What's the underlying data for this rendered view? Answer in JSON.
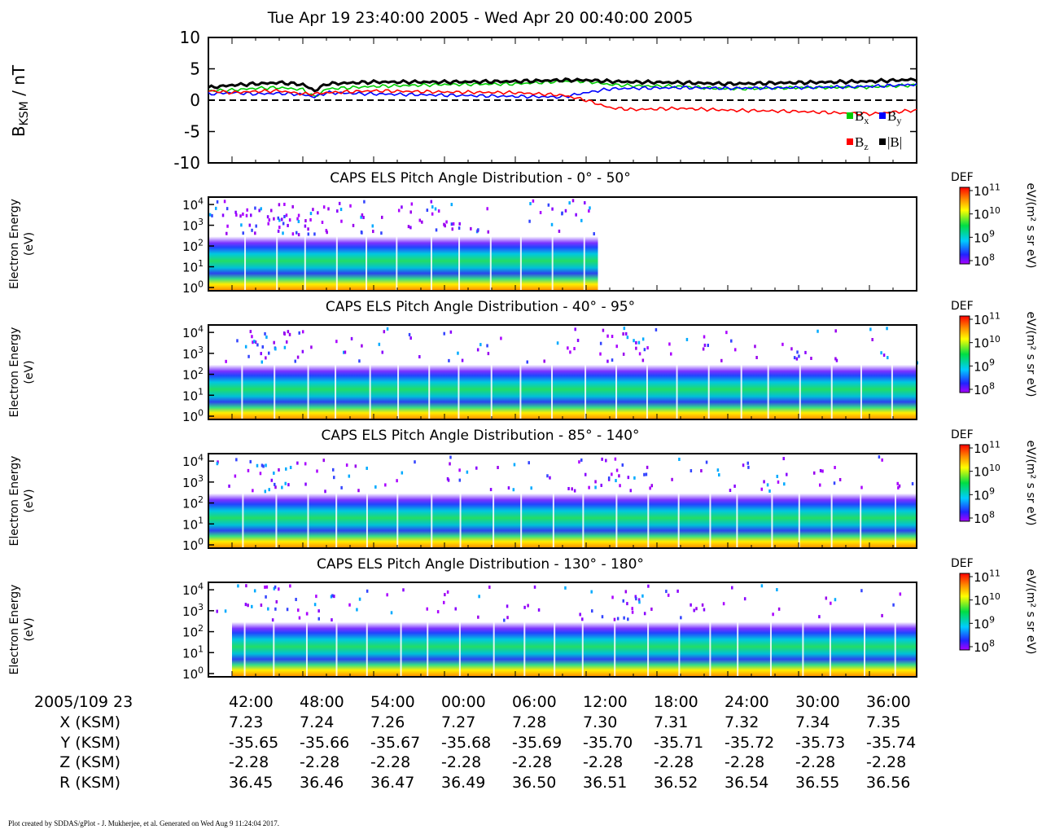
{
  "chart_data": [
    {
      "type": "line",
      "title": "Tue Apr 19 23:40:00 2005 - Wed Apr 20 00:40:00 2005",
      "ylabel_main": "B",
      "ylabel_sub": "KSM",
      "ylabel_unit": " / nT",
      "ylim": [
        -10,
        10
      ],
      "yticks": [
        "10",
        "5",
        "0",
        "-5",
        "-10"
      ],
      "ytick_values": [
        10,
        5,
        0,
        -5,
        -10
      ],
      "reference_line": 0,
      "x_minutes": [
        0,
        2,
        4,
        6,
        8,
        9,
        10,
        14,
        20,
        26,
        30,
        32,
        34,
        36,
        40,
        44,
        50,
        56,
        60
      ],
      "series": [
        {
          "name": "B",
          "subscript": "x",
          "color": "#00cc00",
          "values": [
            1.5,
            1.6,
            1.9,
            2.0,
            1.7,
            0.5,
            1.8,
            2.2,
            2.5,
            2.6,
            3.0,
            3.0,
            2.5,
            2.3,
            2.2,
            1.8,
            2.0,
            2.1,
            2.4
          ]
        },
        {
          "name": "B",
          "subscript": "y",
          "color": "#0000ff",
          "values": [
            1.0,
            1.2,
            1.0,
            1.1,
            0.9,
            0.5,
            1.2,
            1.0,
            0.8,
            0.6,
            0.5,
            1.2,
            1.8,
            1.9,
            2.0,
            1.9,
            2.0,
            2.2,
            2.5
          ]
        },
        {
          "name": "B",
          "subscript": "z",
          "color": "#ff0000",
          "values": [
            1.5,
            1.2,
            1.4,
            1.5,
            1.0,
            1.0,
            1.2,
            1.5,
            1.3,
            1.2,
            0.8,
            0.0,
            -1.2,
            -1.5,
            -1.3,
            -1.6,
            -1.8,
            -2.2,
            -1.6
          ]
        },
        {
          "name": "|B|",
          "subscript": "",
          "color": "#000000",
          "values": [
            2.0,
            2.4,
            2.6,
            2.8,
            2.5,
            1.5,
            2.6,
            2.9,
            2.9,
            3.0,
            3.2,
            3.2,
            3.0,
            2.9,
            2.8,
            2.6,
            2.8,
            3.0,
            3.3
          ]
        }
      ]
    },
    {
      "type": "heatmap",
      "title": "CAPS ELS Pitch Angle Distribution - 0° - 50°",
      "ylabel": [
        "Electron Energy",
        "(eV)"
      ],
      "scale": "log",
      "yticks": [
        "10",
        "10",
        "10",
        "10",
        "10"
      ],
      "ytick_exponents": [
        "4",
        "3",
        "2",
        "1",
        "0"
      ],
      "data_until_minute": 33,
      "colorbar": {
        "label": "DEF",
        "unit": "eV/(m² s sr eV)",
        "ticks": [
          "10",
          "10",
          "10",
          "10"
        ],
        "exponents": [
          "11",
          "10",
          "9",
          "8"
        ]
      }
    },
    {
      "type": "heatmap",
      "title": "CAPS ELS Pitch Angle Distribution - 40° - 95°",
      "ylabel": [
        "Electron Energy",
        "(eV)"
      ],
      "scale": "log",
      "yticks": [
        "10",
        "10",
        "10",
        "10",
        "10"
      ],
      "ytick_exponents": [
        "4",
        "3",
        "2",
        "1",
        "0"
      ],
      "data_until_minute": 60,
      "colorbar": {
        "label": "DEF",
        "unit": "eV/(m² s sr eV)",
        "ticks": [
          "10",
          "10",
          "10",
          "10"
        ],
        "exponents": [
          "11",
          "10",
          "9",
          "8"
        ]
      }
    },
    {
      "type": "heatmap",
      "title": "CAPS ELS Pitch Angle Distribution - 85° - 140°",
      "ylabel": [
        "Electron Energy",
        "(eV)"
      ],
      "scale": "log",
      "yticks": [
        "10",
        "10",
        "10",
        "10",
        "10"
      ],
      "ytick_exponents": [
        "4",
        "3",
        "2",
        "1",
        "0"
      ],
      "data_until_minute": 60,
      "colorbar": {
        "label": "DEF",
        "unit": "eV/(m² s sr eV)",
        "ticks": [
          "10",
          "10",
          "10",
          "10"
        ],
        "exponents": [
          "11",
          "10",
          "9",
          "8"
        ]
      }
    },
    {
      "type": "heatmap",
      "title": "CAPS ELS Pitch Angle Distribution - 130° - 180°",
      "ylabel": [
        "Electron Energy",
        "(eV)"
      ],
      "scale": "log",
      "yticks": [
        "10",
        "10",
        "10",
        "10",
        "10"
      ],
      "ytick_exponents": [
        "4",
        "3",
        "2",
        "1",
        "0"
      ],
      "data_until_minute": 60,
      "colorbar": {
        "label": "DEF",
        "unit": "eV/(m² s sr eV)",
        "ticks": [
          "10",
          "10",
          "10",
          "10"
        ],
        "exponents": [
          "11",
          "10",
          "9",
          "8"
        ]
      }
    }
  ],
  "xaxis": {
    "row_labels": [
      "2005/109 23",
      "X (KSM)",
      "Y (KSM)",
      "Z (KSM)",
      "R (KSM)"
    ],
    "tick_minutes": [
      2,
      8,
      14,
      20,
      26,
      32,
      38,
      44,
      50,
      56
    ],
    "time": [
      "42:00",
      "48:00",
      "54:00",
      "00:00",
      "06:00",
      "12:00",
      "18:00",
      "24:00",
      "30:00",
      "36:00"
    ],
    "x": [
      "7.23",
      "7.24",
      "7.26",
      "7.27",
      "7.28",
      "7.30",
      "7.31",
      "7.32",
      "7.34",
      "7.35"
    ],
    "y": [
      "-35.65",
      "-35.66",
      "-35.67",
      "-35.68",
      "-35.69",
      "-35.70",
      "-35.71",
      "-35.72",
      "-35.73",
      "-35.74"
    ],
    "z": [
      "-2.28",
      "-2.28",
      "-2.28",
      "-2.28",
      "-2.28",
      "-2.28",
      "-2.28",
      "-2.28",
      "-2.28",
      "-2.28"
    ],
    "r": [
      "36.45",
      "36.46",
      "36.47",
      "36.49",
      "36.50",
      "36.51",
      "36.52",
      "36.54",
      "36.55",
      "36.56"
    ]
  },
  "footer": "Plot created by SDDAS/gPlot - J. Mukherjee, et al.  Generated on Wed Aug 9 11:24:04 2017."
}
